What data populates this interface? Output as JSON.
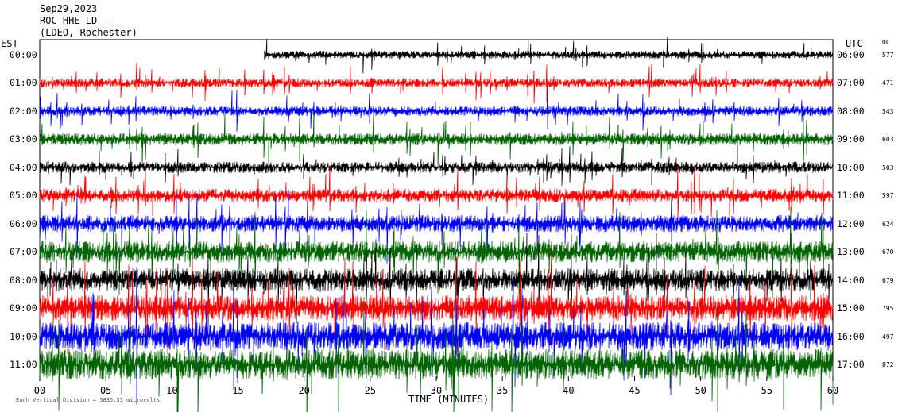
{
  "header": {
    "date": "Sep29,2023",
    "station": "ROC HHE LD --",
    "network": "(LDEO, Rochester)"
  },
  "left_tz": "EST",
  "right_tz": "UTC",
  "dc_header": "DC",
  "footer_note": "Each Vertical Division = 5835.35 microvolts",
  "colors": [
    "#000000",
    "#ff0000",
    "#0000ff",
    "#006400"
  ],
  "chart_data": {
    "type": "line",
    "title": "Sep29,2023 ROC HHE LD -- (LDEO, Rochester)",
    "xlabel": "TIME (MINUTES)",
    "xlim": [
      0,
      60
    ],
    "xticks": [
      "00",
      "05",
      "10",
      "15",
      "20",
      "25",
      "30",
      "35",
      "40",
      "45",
      "50",
      "55",
      "60"
    ],
    "rows": [
      {
        "est": "00:00",
        "utc": "06:00",
        "dc": "577",
        "color": "#000000",
        "amplitude": 0.55,
        "start_min": 17
      },
      {
        "est": "01:00",
        "utc": "07:00",
        "dc": "471",
        "color": "#ff0000",
        "amplitude": 0.65,
        "start_min": 0
      },
      {
        "est": "02:00",
        "utc": "08:00",
        "dc": "543",
        "color": "#0000ff",
        "amplitude": 0.7,
        "start_min": 0
      },
      {
        "est": "03:00",
        "utc": "09:00",
        "dc": "603",
        "color": "#006400",
        "amplitude": 0.85,
        "start_min": 0
      },
      {
        "est": "04:00",
        "utc": "10:00",
        "dc": "503",
        "color": "#000000",
        "amplitude": 0.8,
        "start_min": 0
      },
      {
        "est": "05:00",
        "utc": "11:00",
        "dc": "597",
        "color": "#ff0000",
        "amplitude": 0.95,
        "start_min": 0
      },
      {
        "est": "06:00",
        "utc": "12:00",
        "dc": "624",
        "color": "#0000ff",
        "amplitude": 1.2,
        "start_min": 0
      },
      {
        "est": "07:00",
        "utc": "13:00",
        "dc": "670",
        "color": "#006400",
        "amplitude": 1.5,
        "start_min": 0
      },
      {
        "est": "08:00",
        "utc": "14:00",
        "dc": "679",
        "color": "#000000",
        "amplitude": 1.6,
        "start_min": 0
      },
      {
        "est": "09:00",
        "utc": "15:00",
        "dc": "795",
        "color": "#ff0000",
        "amplitude": 1.8,
        "start_min": 0
      },
      {
        "est": "10:00",
        "utc": "16:00",
        "dc": "497",
        "color": "#0000ff",
        "amplitude": 2.0,
        "start_min": 0
      },
      {
        "est": "11:00",
        "utc": "17:00",
        "dc": "872",
        "color": "#006400",
        "amplitude": 2.1,
        "start_min": 0
      }
    ]
  }
}
